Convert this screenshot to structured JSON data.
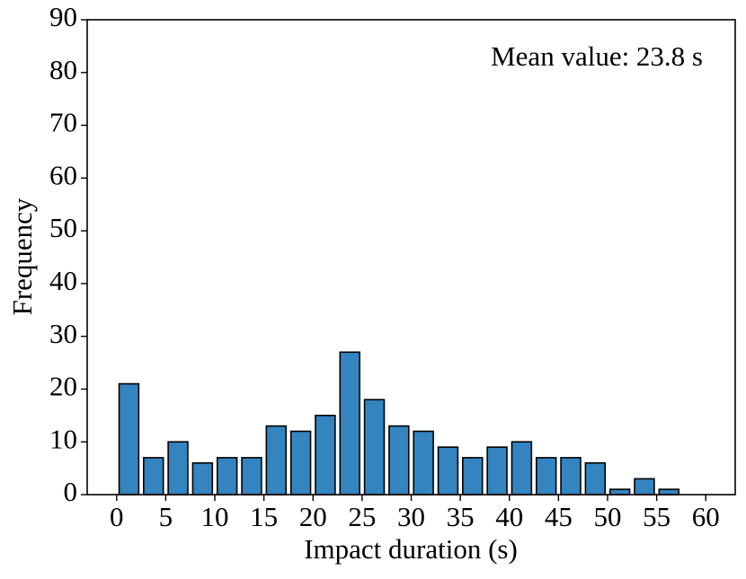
{
  "chart_data": {
    "type": "histogram",
    "xlabel": "Impact duration (s)",
    "ylabel": "Frequency",
    "annotation": "Mean value: 23.8 s",
    "bins": [
      0,
      2.5,
      5,
      7.5,
      10,
      12.5,
      15,
      17.5,
      20,
      22.5,
      25,
      27.5,
      30,
      32.5,
      35,
      37.5,
      40,
      42.5,
      45,
      47.5,
      50,
      52.5,
      55,
      57.5,
      60
    ],
    "counts": [
      21,
      7,
      10,
      6,
      7,
      7,
      13,
      12,
      15,
      27,
      18,
      13,
      12,
      9,
      7,
      9,
      10,
      7,
      7,
      6,
      1,
      3,
      1,
      0
    ],
    "color": "#3484c0",
    "edgecolor": "#000000",
    "xlim": [
      -3,
      63
    ],
    "xticks": [
      0,
      5,
      10,
      15,
      20,
      25,
      30,
      35,
      40,
      45,
      50,
      55,
      60
    ],
    "ylim": [
      0,
      90
    ],
    "yticks": [
      0,
      10,
      20,
      30,
      40,
      50,
      60,
      70,
      80,
      90
    ]
  }
}
